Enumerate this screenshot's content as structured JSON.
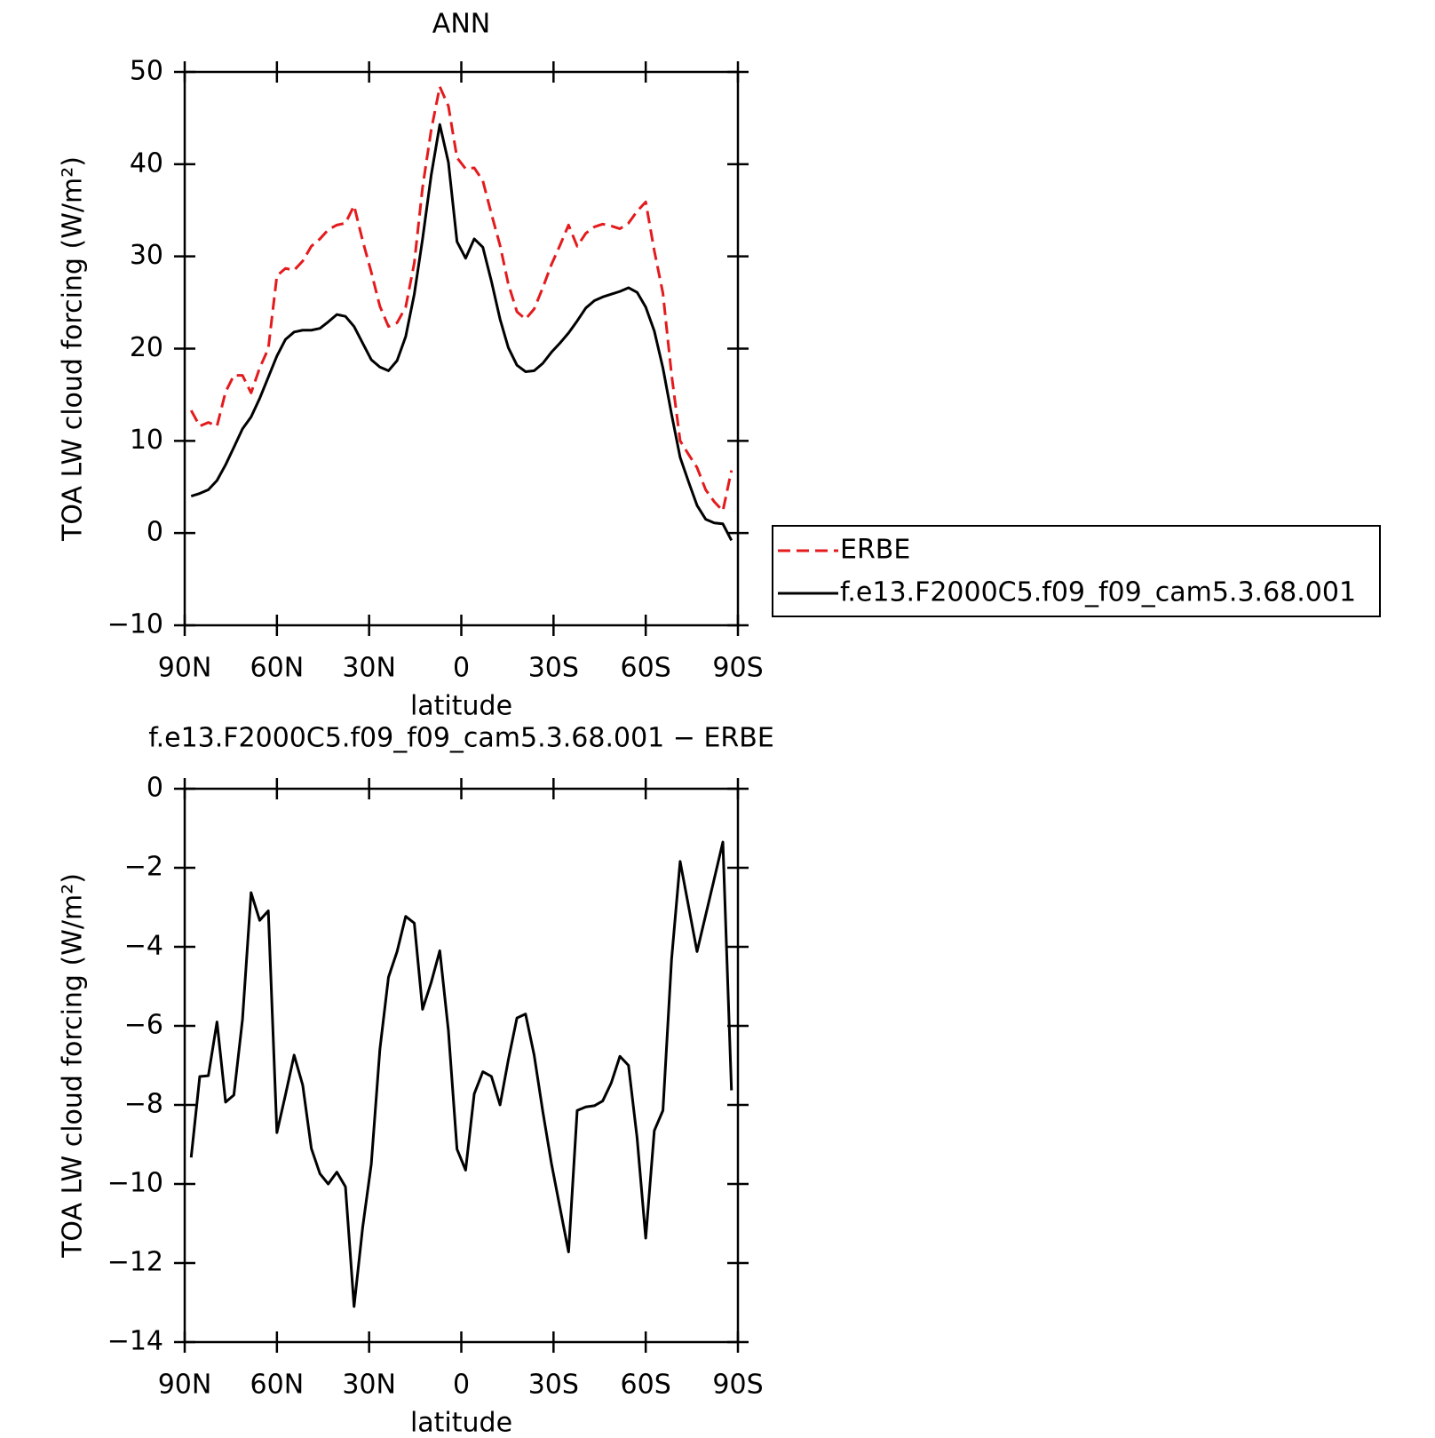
{
  "chart_data": [
    {
      "type": "line",
      "title": "ANN",
      "xlabel": "latitude",
      "ylabel": "TOA LW cloud forcing (W/m²)",
      "x": [
        87.9,
        85.1,
        82.3,
        79.5,
        76.7,
        74.0,
        71.2,
        68.4,
        65.6,
        62.8,
        60.0,
        57.2,
        54.4,
        51.6,
        48.8,
        46.0,
        43.3,
        40.5,
        37.7,
        34.9,
        32.1,
        29.3,
        26.5,
        23.7,
        20.9,
        18.1,
        15.3,
        12.6,
        9.8,
        7.0,
        4.2,
        1.4,
        -1.4,
        -4.2,
        -7.0,
        -9.8,
        -12.6,
        -15.3,
        -18.1,
        -20.9,
        -23.7,
        -26.5,
        -29.3,
        -32.1,
        -34.9,
        -37.7,
        -40.5,
        -43.3,
        -46.0,
        -48.8,
        -51.6,
        -54.4,
        -57.2,
        -60.0,
        -62.8,
        -65.6,
        -68.4,
        -71.2,
        -74.0,
        -76.7,
        -79.5,
        -82.3,
        -85.1,
        -87.9
      ],
      "series": [
        {
          "name": "ERBE",
          "color": "#e41a1c",
          "dash": true,
          "values": [
            13.3,
            11.6,
            12.0,
            11.6,
            15.3,
            17.1,
            17.1,
            15.2,
            17.9,
            20.0,
            27.9,
            28.7,
            28.5,
            29.5,
            31.1,
            31.9,
            32.9,
            33.4,
            33.6,
            35.5,
            31.7,
            28.3,
            24.6,
            22.4,
            22.8,
            24.5,
            29.3,
            37.5,
            43.7,
            48.4,
            46.3,
            40.7,
            39.5,
            39.6,
            38.2,
            34.6,
            31.2,
            27.0,
            24.0,
            23.2,
            24.3,
            26.6,
            29.1,
            31.2,
            33.4,
            31.1,
            32.5,
            33.2,
            33.5,
            33.3,
            33.0,
            33.6,
            34.9,
            35.9,
            30.6,
            26.0,
            17.2,
            10.0,
            8.5,
            7.1,
            4.7,
            3.4,
            2.4,
            6.8
          ]
        },
        {
          "name": "f.e13.F2000C5.f09_f09_cam5.3.68.001",
          "color": "#000000",
          "dash": false,
          "values": [
            4.0,
            4.3,
            4.7,
            5.7,
            7.4,
            9.3,
            11.3,
            12.6,
            14.6,
            16.9,
            19.2,
            21.0,
            21.8,
            22.0,
            22.0,
            22.2,
            22.9,
            23.7,
            23.5,
            22.4,
            20.6,
            18.8,
            18.0,
            17.6,
            18.7,
            21.3,
            25.9,
            31.9,
            38.8,
            44.3,
            40.2,
            31.6,
            29.8,
            31.9,
            31.0,
            27.3,
            23.2,
            20.1,
            18.2,
            17.5,
            17.6,
            18.4,
            19.6,
            20.6,
            21.7,
            23.0,
            24.4,
            25.2,
            25.6,
            25.9,
            26.2,
            26.6,
            26.1,
            24.5,
            21.9,
            17.9,
            12.9,
            8.2,
            5.5,
            3.0,
            1.5,
            1.1,
            1.0,
            -0.8
          ]
        }
      ],
      "xlim": [
        90,
        -90
      ],
      "xticks": [
        {
          "value": 90,
          "label": "90N"
        },
        {
          "value": 60,
          "label": "60N"
        },
        {
          "value": 30,
          "label": "30N"
        },
        0,
        {
          "value": -30,
          "label": "30S"
        },
        {
          "value": -60,
          "label": "60S"
        },
        {
          "value": -90,
          "label": "90S"
        }
      ],
      "ylim": [
        -10,
        50
      ],
      "yticks": [
        {
          "value": -10,
          "label": "−10"
        },
        0,
        10,
        20,
        30,
        40,
        50
      ],
      "legend": "right"
    },
    {
      "type": "line",
      "title": "f.e13.F2000C5.f09_f09_cam5.3.68.001 − ERBE",
      "xlabel": "latitude",
      "ylabel": "TOA LW cloud forcing (W/m²)",
      "x": [
        87.9,
        85.1,
        82.3,
        79.5,
        76.7,
        74.0,
        71.2,
        68.4,
        65.6,
        62.8,
        60.0,
        57.2,
        54.4,
        51.6,
        48.8,
        46.0,
        43.3,
        40.5,
        37.7,
        34.9,
        32.1,
        29.3,
        26.5,
        23.7,
        20.9,
        18.1,
        15.3,
        12.6,
        9.8,
        7.0,
        4.2,
        1.4,
        -1.4,
        -4.2,
        -7.0,
        -9.8,
        -12.6,
        -15.3,
        -18.1,
        -20.9,
        -23.7,
        -26.5,
        -29.3,
        -32.1,
        -34.9,
        -37.7,
        -40.5,
        -43.3,
        -46.0,
        -48.8,
        -51.6,
        -54.4,
        -57.2,
        -60.0,
        -62.8,
        -65.6,
        -68.4,
        -71.2,
        -74.0,
        -76.7,
        -79.5,
        -82.3,
        -85.1,
        -87.9
      ],
      "color": "#000000",
      "values": [
        -9.33,
        -7.28,
        -7.26,
        -5.9,
        -7.93,
        -7.75,
        -5.84,
        -2.63,
        -3.33,
        -3.09,
        -8.7,
        -7.74,
        -6.74,
        -7.5,
        -9.1,
        -9.74,
        -10.0,
        -9.7,
        -10.07,
        -13.1,
        -11.1,
        -9.5,
        -6.6,
        -4.77,
        -4.12,
        -3.23,
        -3.4,
        -5.58,
        -4.9,
        -4.1,
        -6.12,
        -9.12,
        -9.65,
        -7.72,
        -7.16,
        -7.28,
        -8.0,
        -6.86,
        -5.8,
        -5.7,
        -6.74,
        -8.16,
        -9.47,
        -10.6,
        -11.72,
        -8.14,
        -8.05,
        -8.02,
        -7.9,
        -7.44,
        -6.77,
        -7.0,
        -8.84,
        -11.37,
        -8.65,
        -8.14,
        -4.33,
        -1.84,
        -3.0,
        -4.12,
        -3.2,
        -2.28,
        -1.35,
        -7.63
      ],
      "xlim": [
        90,
        -90
      ],
      "xticks": [
        {
          "value": 90,
          "label": "90N"
        },
        {
          "value": 60,
          "label": "60N"
        },
        {
          "value": 30,
          "label": "30N"
        },
        0,
        {
          "value": -30,
          "label": "30S"
        },
        {
          "value": -60,
          "label": "60S"
        },
        {
          "value": -90,
          "label": "90S"
        }
      ],
      "ylim": [
        -14,
        0
      ],
      "yticks": [
        {
          "value": -14,
          "label": "−14"
        },
        {
          "value": -12,
          "label": "−12"
        },
        {
          "value": -10,
          "label": "−10"
        },
        {
          "value": -8,
          "label": "−8"
        },
        {
          "value": -6,
          "label": "−6"
        },
        {
          "value": -4,
          "label": "−4"
        },
        {
          "value": -2,
          "label": "−2"
        },
        0
      ]
    }
  ]
}
